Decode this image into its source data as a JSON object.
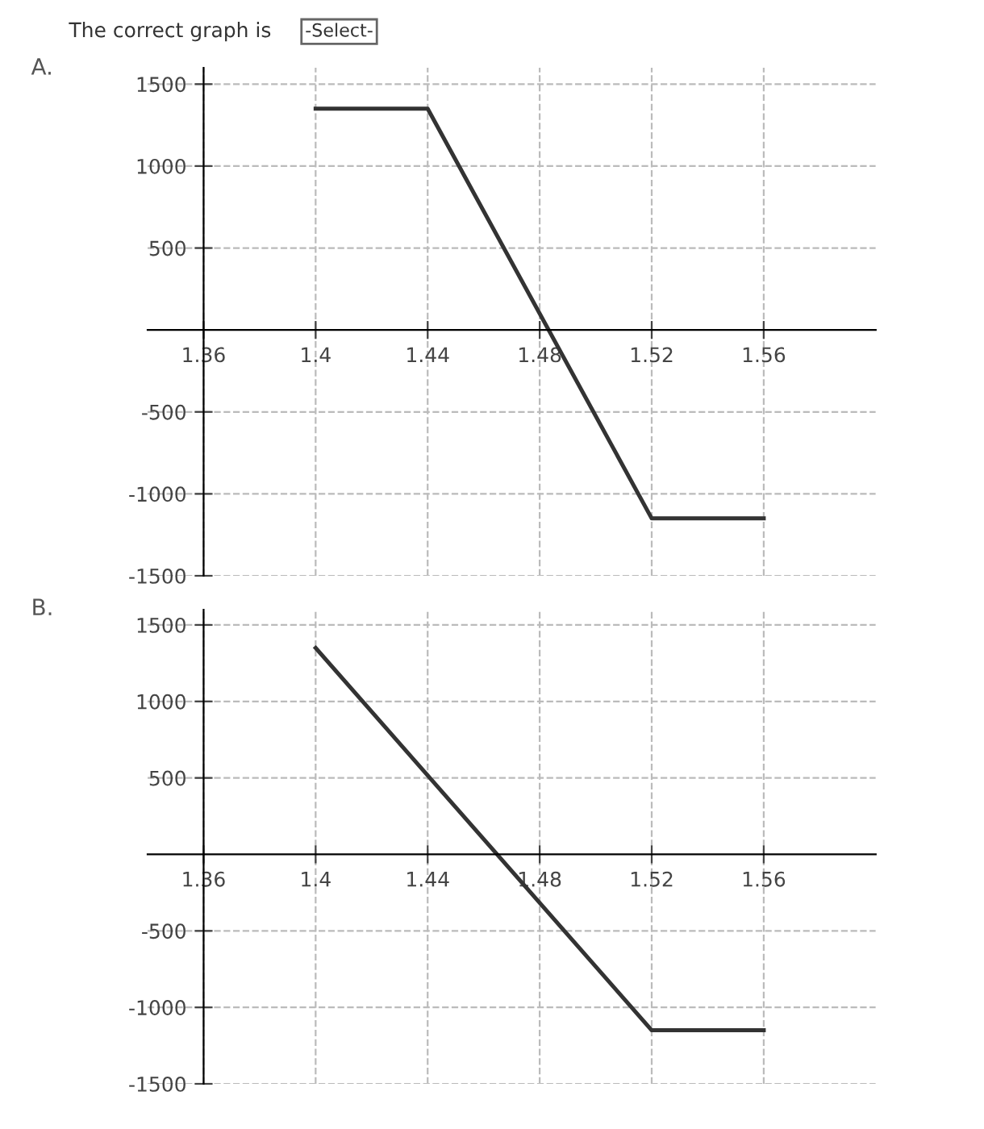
{
  "chart_data": [
    {
      "type": "line",
      "title": "A.",
      "annotations": [
        "The correct graph is",
        "-Select-"
      ],
      "x": [
        1.4,
        1.44,
        1.52,
        1.56
      ],
      "series": [
        {
          "color": "#333333",
          "values": [
            1350,
            1350,
            -1150,
            -1150
          ]
        }
      ],
      "xlim": [
        1.34,
        1.6
      ],
      "ylim": [
        -1500,
        1600
      ],
      "xticks": [
        1.36,
        1.4,
        1.44,
        1.48,
        1.52,
        1.56
      ],
      "yticks": [
        -1500,
        -1000,
        -500,
        500,
        1000,
        1500
      ],
      "grid": true,
      "marker": "none",
      "line_style": "solid"
    },
    {
      "type": "line",
      "title": "B.",
      "x": [
        1.4,
        1.52,
        1.56
      ],
      "series": [
        {
          "color": "#333333",
          "values": [
            1350,
            -1150,
            -1150
          ]
        }
      ],
      "xlim": [
        1.34,
        1.6
      ],
      "ylim": [
        -1500,
        1600
      ],
      "xticks": [
        1.36,
        1.4,
        1.44,
        1.48,
        1.52,
        1.56
      ],
      "yticks": [
        -1500,
        -1000,
        -500,
        500,
        1000,
        1500
      ],
      "grid": true,
      "marker": "none",
      "line_style": "solid"
    }
  ]
}
